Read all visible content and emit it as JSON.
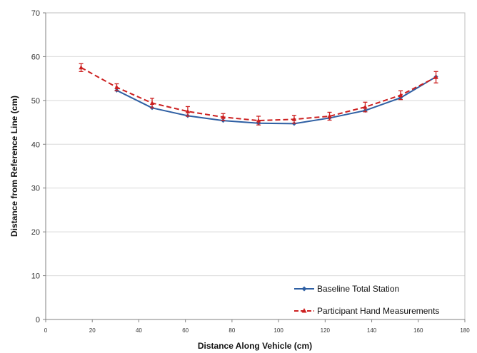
{
  "chart_data": {
    "type": "line",
    "title": "",
    "xlabel": "Distance Along Vehicle (cm)",
    "ylabel": "Distance from Reference Line (cm)",
    "xlim": [
      0,
      180
    ],
    "ylim": [
      0,
      70
    ],
    "xticks": [
      0,
      20,
      40,
      60,
      80,
      100,
      120,
      140,
      160,
      180
    ],
    "yticks": [
      0,
      10,
      20,
      30,
      40,
      50,
      60,
      70
    ],
    "grid": "horizontal",
    "legend_position": "bottom-right",
    "series": [
      {
        "name": "Baseline Total Station",
        "color": "#2e5fa3",
        "line_style": "solid",
        "marker": "diamond",
        "x": [
          30.5,
          45.7,
          61,
          76.2,
          91.4,
          106.7,
          121.9,
          137.2,
          152.4,
          167.6
        ],
        "y": [
          52.3,
          48.3,
          46.5,
          45.4,
          44.8,
          44.7,
          46.0,
          47.7,
          50.6,
          55.4
        ]
      },
      {
        "name": "Participant Hand Measurements",
        "color": "#cc1f1f",
        "line_style": "dashed",
        "marker": "triangle",
        "x": [
          15.2,
          30.5,
          45.7,
          61,
          76.2,
          91.4,
          106.7,
          121.9,
          137.2,
          152.4,
          167.6
        ],
        "y": [
          57.5,
          53.0,
          49.4,
          47.5,
          46.2,
          45.4,
          45.7,
          46.4,
          48.5,
          51.2,
          55.3
        ],
        "error": [
          0.9,
          0.8,
          1.1,
          1.1,
          0.8,
          1.0,
          0.9,
          0.9,
          1.1,
          1.0,
          1.3
        ]
      }
    ]
  }
}
